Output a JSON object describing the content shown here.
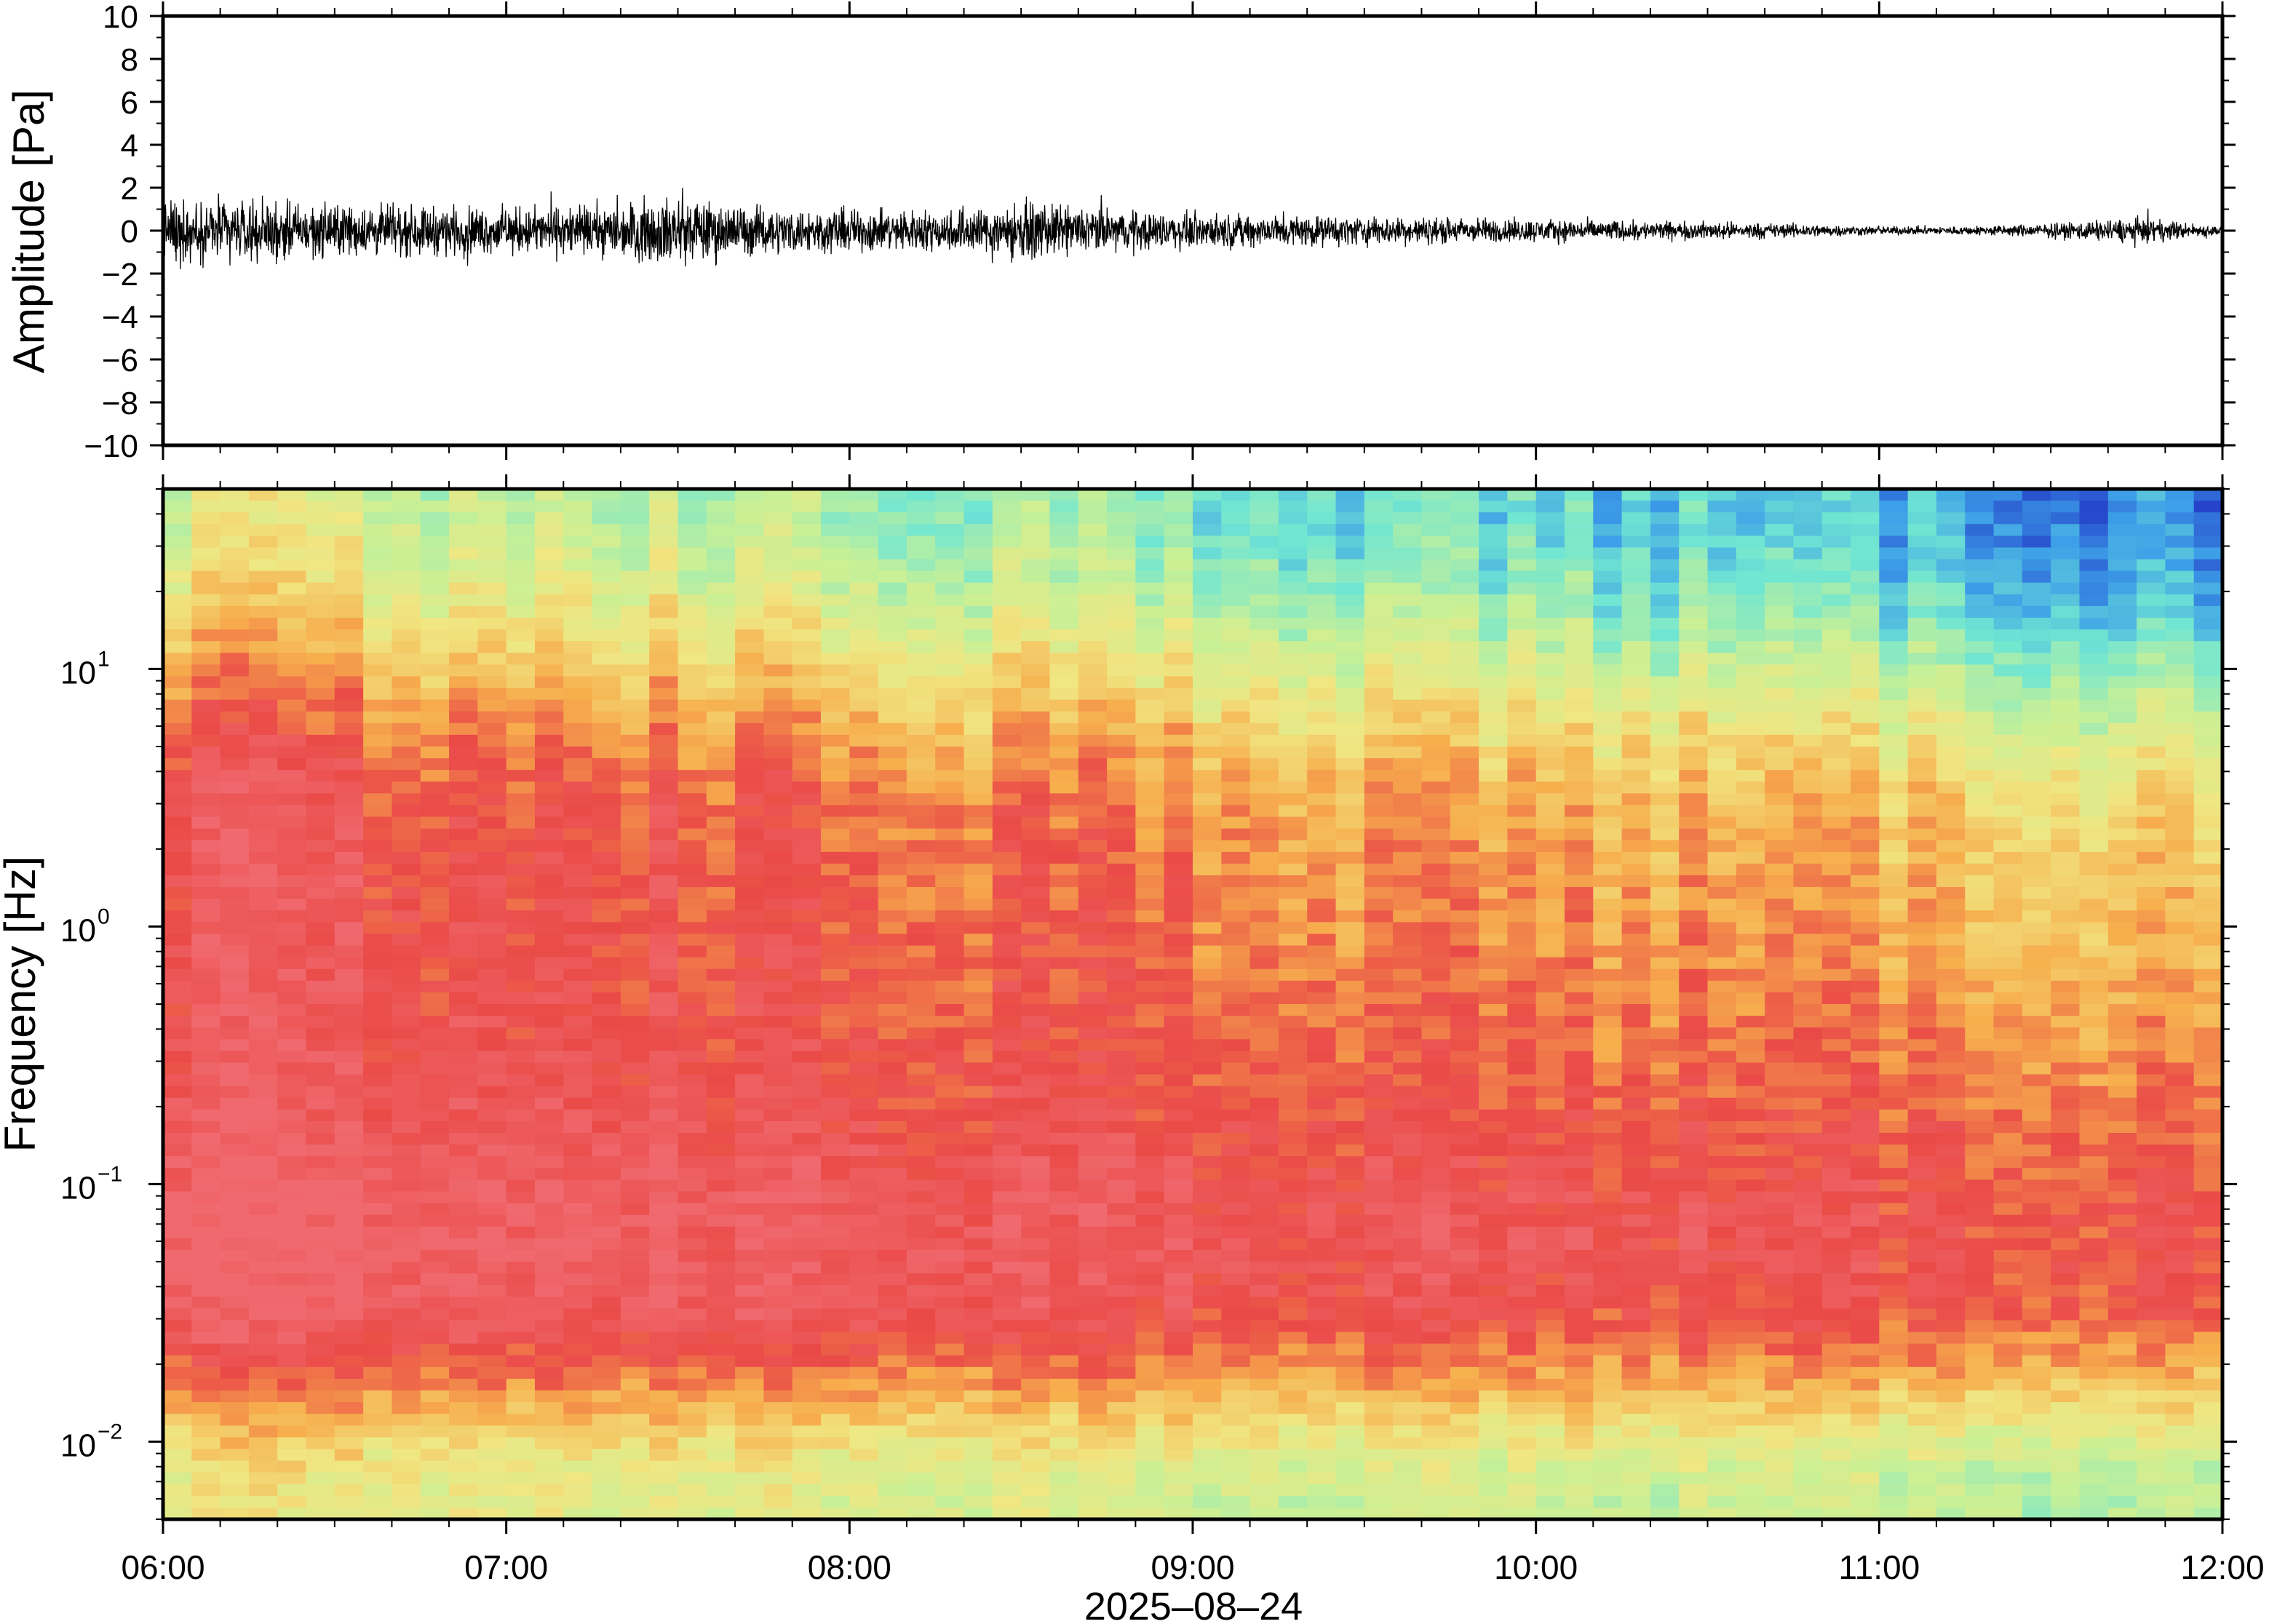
{
  "chart_data": [
    {
      "type": "line",
      "panel": "waveform",
      "title": "",
      "xlabel": "",
      "ylabel": "Amplitude [Pa]",
      "ylim": [
        -10,
        10
      ],
      "y_ticks": [
        {
          "value": -10,
          "label": "−10"
        },
        {
          "value": -8,
          "label": "−8"
        },
        {
          "value": -6,
          "label": "−6"
        },
        {
          "value": -4,
          "label": "−4"
        },
        {
          "value": -2,
          "label": "−2"
        },
        {
          "value": 0,
          "label": "0"
        },
        {
          "value": 2,
          "label": "2"
        },
        {
          "value": 4,
          "label": "4"
        },
        {
          "value": 6,
          "label": "6"
        },
        {
          "value": 8,
          "label": "8"
        },
        {
          "value": 10,
          "label": "10"
        }
      ],
      "xlim": [
        "06:00",
        "12:00"
      ],
      "envelope": {
        "times": [
          "06:00",
          "06:15",
          "06:30",
          "06:45",
          "07:00",
          "07:15",
          "07:30",
          "07:45",
          "08:00",
          "08:15",
          "08:30",
          "08:45",
          "09:00",
          "09:15",
          "09:30",
          "09:45",
          "10:00",
          "10:15",
          "10:30",
          "10:45",
          "11:00",
          "11:15",
          "11:30",
          "11:45",
          "12:00"
        ],
        "peak_amplitude": [
          2.2,
          2.0,
          1.8,
          1.7,
          1.6,
          1.7,
          2.4,
          1.6,
          1.5,
          1.4,
          1.9,
          1.5,
          1.2,
          1.1,
          1.0,
          0.9,
          0.8,
          0.7,
          0.6,
          0.5,
          0.3,
          0.3,
          0.5,
          0.9,
          0.3
        ]
      }
    },
    {
      "type": "heatmap",
      "panel": "spectrogram",
      "title": "",
      "xlabel": "2025–08–24",
      "ylabel": "Frequency [Hz]",
      "y_scale": "log",
      "ylim": [
        0.005,
        50
      ],
      "y_ticks": [
        {
          "value": 0.01,
          "base": "10",
          "exp": "−2"
        },
        {
          "value": 0.1,
          "base": "10",
          "exp": "−1"
        },
        {
          "value": 1,
          "base": "10",
          "exp": "0"
        },
        {
          "value": 10,
          "base": "10",
          "exp": "1"
        }
      ],
      "x_ticks": [
        "06:00",
        "07:00",
        "08:00",
        "09:00",
        "10:00",
        "11:00",
        "12:00"
      ],
      "xlim": [
        "06:00",
        "12:00"
      ],
      "colormap": "rainbow",
      "colorbar": false,
      "colors": {
        "high": "#ea4a47",
        "mid_high": "#f7ae4d",
        "mid": "#e6f08c",
        "mid_low": "#70e6d2",
        "low": "#3d9fe8",
        "lowest": "#0c0d72"
      }
    }
  ]
}
